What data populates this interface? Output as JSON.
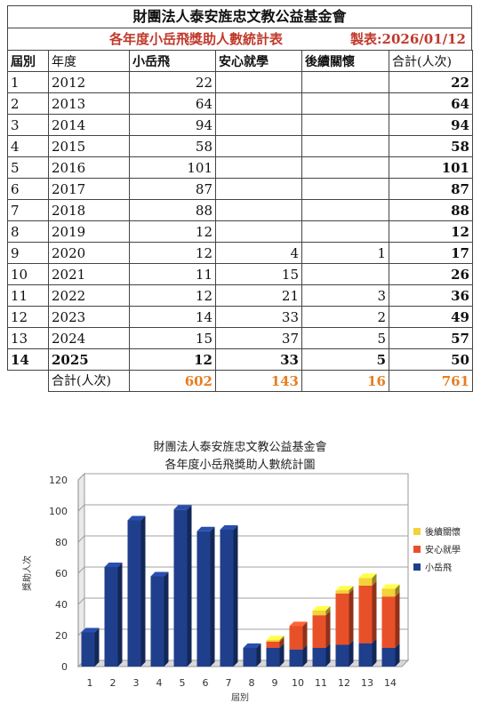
{
  "table": {
    "title": "財團法人泰安旌忠文教公益基金會",
    "subtitle": "各年度小岳飛獎助人數統計表",
    "made": "製表:2026/01/12",
    "headers": [
      "屆別",
      "年度",
      "小岳飛",
      "安心就學",
      "後續關懷",
      "合計(人次)"
    ],
    "rows": [
      [
        "1",
        "2012",
        "22",
        "",
        "",
        "22"
      ],
      [
        "2",
        "2013",
        "64",
        "",
        "",
        "64"
      ],
      [
        "3",
        "2014",
        "94",
        "",
        "",
        "94"
      ],
      [
        "4",
        "2015",
        "58",
        "",
        "",
        "58"
      ],
      [
        "5",
        "2016",
        "101",
        "",
        "",
        "101"
      ],
      [
        "6",
        "2017",
        "87",
        "",
        "",
        "87"
      ],
      [
        "7",
        "2018",
        "88",
        "",
        "",
        "88"
      ],
      [
        "8",
        "2019",
        "12",
        "",
        "",
        "12"
      ],
      [
        "9",
        "2020",
        "12",
        "4",
        "1",
        "17"
      ],
      [
        "10",
        "2021",
        "11",
        "15",
        "",
        "26"
      ],
      [
        "11",
        "2022",
        "12",
        "21",
        "3",
        "36"
      ],
      [
        "12",
        "2023",
        "14",
        "33",
        "2",
        "49"
      ],
      [
        "13",
        "2024",
        "15",
        "37",
        "5",
        "57"
      ],
      [
        "14",
        "2025",
        "12",
        "33",
        "5",
        "50"
      ]
    ],
    "total": [
      "合計(人次)",
      "602",
      "143",
      "16",
      "761"
    ]
  },
  "chart_data": {
    "type": "bar",
    "stacked": true,
    "title": "財團法人泰安旌忠文教公益基金會",
    "subtitle": "各年度小岳飛獎助人數統計圖",
    "xlabel": "屆別",
    "ylabel": "獎助人次",
    "ylim": [
      0,
      120
    ],
    "yticks": [
      0,
      20,
      40,
      60,
      80,
      100,
      120
    ],
    "categories": [
      "1",
      "2",
      "3",
      "4",
      "5",
      "6",
      "7",
      "8",
      "9",
      "10",
      "11",
      "12",
      "13",
      "14"
    ],
    "series": [
      {
        "name": "小岳飛",
        "color": "#1f3f8c",
        "values": [
          22,
          64,
          94,
          58,
          101,
          87,
          88,
          12,
          12,
          11,
          12,
          14,
          15,
          12
        ]
      },
      {
        "name": "安心就學",
        "color": "#e8502a",
        "values": [
          0,
          0,
          0,
          0,
          0,
          0,
          0,
          0,
          4,
          15,
          21,
          33,
          37,
          33
        ]
      },
      {
        "name": "後續關懷",
        "color": "#f3d23a",
        "values": [
          0,
          0,
          0,
          0,
          0,
          0,
          0,
          0,
          1,
          0,
          3,
          2,
          5,
          5
        ]
      }
    ],
    "legend_order": [
      "後續關懷",
      "安心就學",
      "小岳飛"
    ],
    "legend_position": "right",
    "grid": true
  }
}
